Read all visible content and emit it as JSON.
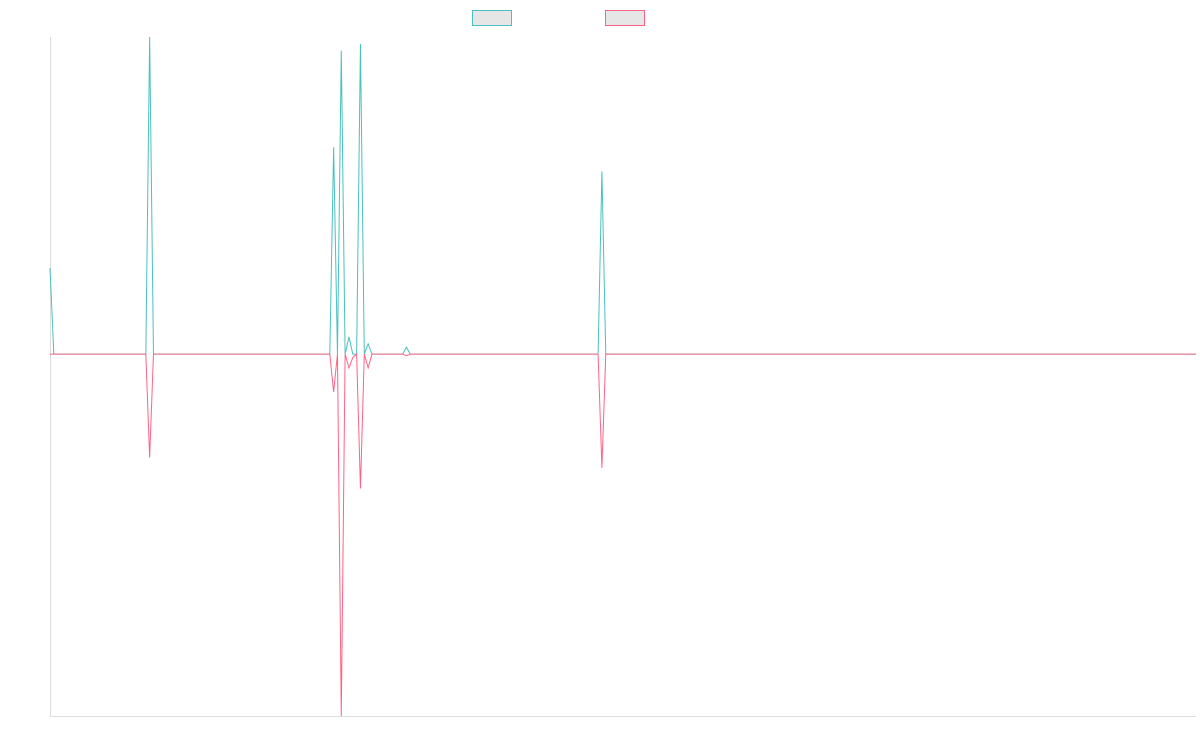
{
  "chart_data": {
    "type": "line",
    "title": "",
    "xlabel": "",
    "ylabel": "",
    "x_count": 300,
    "ylim": [
      -10.5,
      9.2
    ],
    "grid": false,
    "legend_position": "top",
    "series": [
      {
        "name": "",
        "color": "#4bc0c0",
        "fill": "#e6e6e6",
        "points": [
          [
            0,
            2.5
          ],
          [
            1,
            0
          ],
          [
            25,
            0
          ],
          [
            26,
            9.2
          ],
          [
            27,
            0
          ],
          [
            73,
            0
          ],
          [
            74,
            6.0
          ],
          [
            75,
            0
          ],
          [
            76,
            8.8
          ],
          [
            77,
            0
          ],
          [
            78,
            0.5
          ],
          [
            79,
            0
          ],
          [
            80,
            0
          ],
          [
            81,
            9.0
          ],
          [
            82,
            0
          ],
          [
            83,
            0.3
          ],
          [
            84,
            0
          ],
          [
            92,
            0
          ],
          [
            93,
            0.2
          ],
          [
            94,
            0
          ],
          [
            143,
            0
          ],
          [
            144,
            5.3
          ],
          [
            145,
            0
          ],
          [
            299,
            0
          ]
        ]
      },
      {
        "name": "",
        "color": "#ff6384",
        "fill": "#e6e6e6",
        "points": [
          [
            0,
            0
          ],
          [
            25,
            0
          ],
          [
            26,
            -3.0
          ],
          [
            27,
            0
          ],
          [
            73,
            0
          ],
          [
            74,
            -1.1
          ],
          [
            75,
            0
          ],
          [
            76,
            -10.5
          ],
          [
            77,
            0
          ],
          [
            78,
            -0.4
          ],
          [
            79,
            -0.1
          ],
          [
            80,
            0
          ],
          [
            81,
            -3.9
          ],
          [
            82,
            0
          ],
          [
            83,
            -0.4
          ],
          [
            84,
            0
          ],
          [
            92,
            0
          ],
          [
            93,
            -0.05
          ],
          [
            94,
            0
          ],
          [
            143,
            0
          ],
          [
            144,
            -3.3
          ],
          [
            145,
            0
          ],
          [
            299,
            0
          ]
        ]
      }
    ]
  }
}
